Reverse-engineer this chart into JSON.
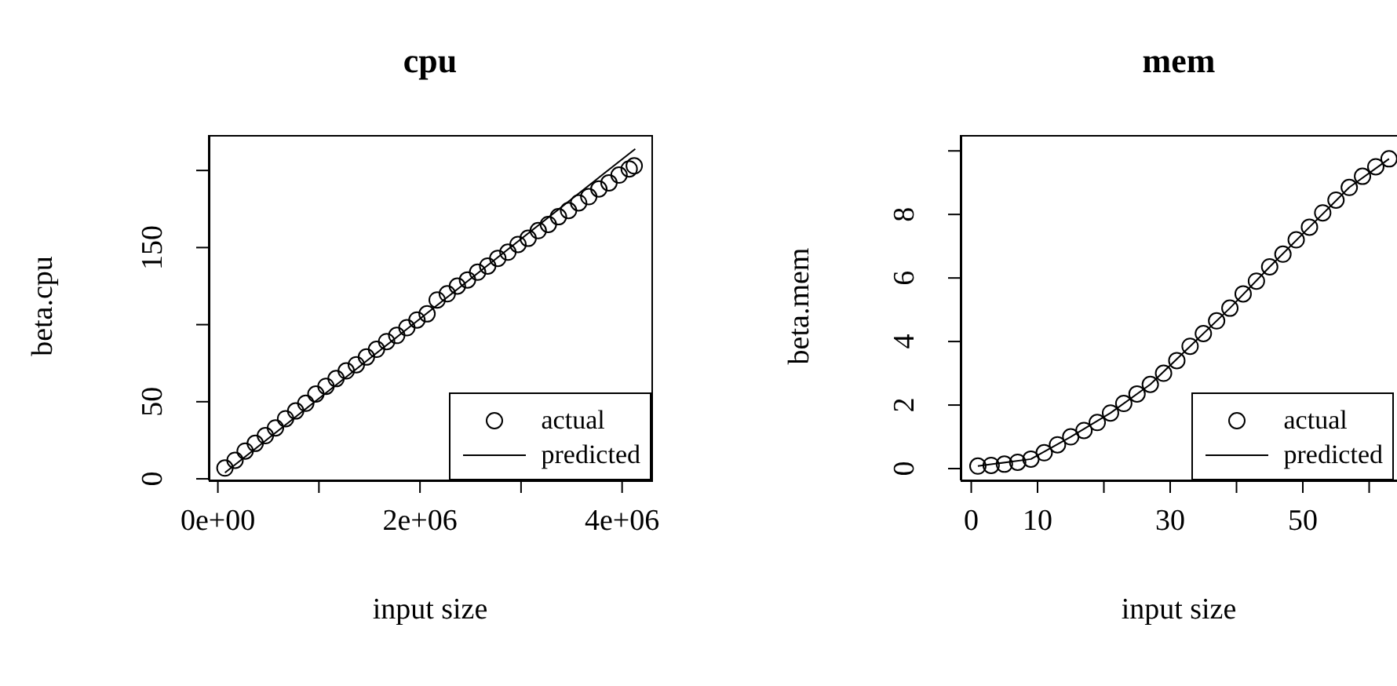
{
  "chart_data": [
    {
      "type": "scatter",
      "title": "cpu",
      "xlabel": "input size",
      "ylabel": "beta.cpu",
      "legend": "bottom right",
      "marker": "circle",
      "xlim": [
        -90000,
        4290000
      ],
      "ylim": [
        -1,
        223
      ],
      "xticks": [
        {
          "value": 0,
          "label": "0e+00"
        },
        {
          "value": 1000000,
          "label": null
        },
        {
          "value": 2000000,
          "label": "2e+06"
        },
        {
          "value": 3000000,
          "label": null
        },
        {
          "value": 4000000,
          "label": "4e+06"
        }
      ],
      "yticks": [
        0,
        50,
        {
          "value": 100,
          "label": null
        },
        150,
        {
          "value": 200,
          "label": null
        }
      ],
      "series": [
        {
          "name": "actual",
          "color": "#000000",
          "x": [
            70000,
            170000,
            270000,
            370000,
            470000,
            570000,
            670000,
            770000,
            870000,
            970000,
            1070000,
            1170000,
            1270000,
            1370000,
            1470000,
            1570000,
            1670000,
            1770000,
            1870000,
            1970000,
            2070000,
            2170000,
            2270000,
            2370000,
            2470000,
            2570000,
            2670000,
            2770000,
            2870000,
            2970000,
            3070000,
            3170000,
            3270000,
            3370000,
            3470000,
            3570000,
            3670000,
            3770000,
            3870000,
            3970000,
            4070000,
            4120000
          ],
          "values": [
            7,
            12,
            18,
            23,
            28,
            33,
            39,
            44,
            49,
            55,
            60,
            65,
            70,
            74,
            79,
            84,
            89,
            93,
            98,
            103,
            107,
            116,
            120,
            125,
            129,
            134,
            138,
            143,
            147,
            152,
            156,
            161,
            165,
            170,
            174,
            179,
            183,
            188,
            192,
            197,
            201,
            203
          ]
        },
        {
          "name": "predicted",
          "type": "line",
          "marker": "none",
          "color": "#000000",
          "x": [
            70000,
            4130000
          ],
          "values": [
            4,
            214
          ]
        }
      ]
    },
    {
      "type": "scatter",
      "title": "mem",
      "xlabel": "input size",
      "ylabel": "beta.mem",
      "legend": "bottom right",
      "marker": "circle",
      "xlim": [
        -1.6,
        64.2
      ],
      "ylim": [
        -0.37,
        10.5
      ],
      "xticks": [
        0,
        10,
        {
          "value": 20,
          "label": null
        },
        30,
        {
          "value": 40,
          "label": null
        },
        50,
        {
          "value": 60,
          "label": null
        }
      ],
      "yticks": [
        0,
        2,
        4,
        6,
        8,
        {
          "value": 10,
          "label": null
        }
      ],
      "series": [
        {
          "name": "actual",
          "color": "#000000",
          "x": [
            1,
            3,
            5,
            7,
            9,
            11,
            13,
            15,
            17,
            19,
            21,
            23,
            25,
            27,
            29,
            31,
            33,
            35,
            37,
            39,
            41,
            43,
            45,
            47,
            49,
            51,
            53,
            55,
            57,
            59,
            61,
            63
          ],
          "values": [
            0.08,
            0.1,
            0.14,
            0.2,
            0.3,
            0.5,
            0.75,
            1.0,
            1.2,
            1.45,
            1.75,
            2.05,
            2.35,
            2.65,
            3.0,
            3.4,
            3.85,
            4.25,
            4.65,
            5.05,
            5.5,
            5.9,
            6.35,
            6.75,
            7.2,
            7.6,
            8.05,
            8.45,
            8.85,
            9.2,
            9.5,
            9.75
          ]
        },
        {
          "name": "predicted",
          "type": "line",
          "marker": "none",
          "color": "#000000",
          "x": [
            1,
            9,
            15,
            21,
            27,
            33,
            39,
            45,
            51,
            57,
            63
          ],
          "values": [
            0.08,
            0.3,
            1.0,
            1.75,
            2.65,
            3.85,
            5.05,
            6.35,
            7.6,
            8.85,
            9.75
          ]
        }
      ]
    }
  ]
}
